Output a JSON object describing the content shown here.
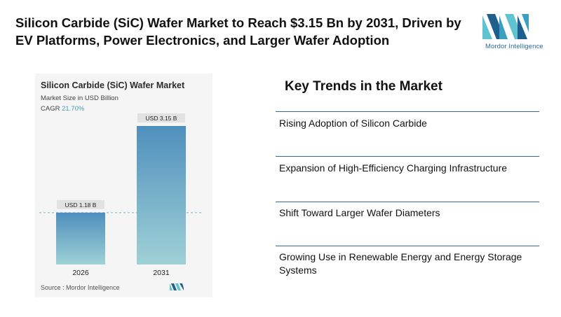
{
  "headline": "Silicon Carbide (SiC) Wafer Market to Reach $3.15 Bn by 2031, Driven by EV Platforms, Power Electronics, and Larger Wafer Adoption",
  "logo": {
    "text": "Mordor Intelligence",
    "icon": "mordor-intelligence-logo"
  },
  "chart": {
    "title": "Silicon Carbide (SiC) Wafer Market",
    "subtitle": "Market Size in USD Billion",
    "cagr_label": "CAGR",
    "cagr_value": "21.70%",
    "source": "Source : Mordor Intelligence"
  },
  "chart_data": {
    "type": "bar",
    "title": "Silicon Carbide (SiC) Wafer Market",
    "ylabel": "Market Size in USD Billion",
    "xlabel": "",
    "categories": [
      "2026",
      "2031"
    ],
    "values": [
      1.18,
      3.15
    ],
    "data_labels": [
      "USD 1.18 B",
      "USD 3.15 B"
    ],
    "ylim": [
      0,
      3.15
    ],
    "reference_line": 1.18,
    "grid": false,
    "legend": "none",
    "bar_color_top": "#4f8fbd",
    "bar_color_bottom": "#9fd1d6"
  },
  "trends": {
    "title": "Key Trends in the Market",
    "items": [
      {
        "label": "Rising Adoption of Silicon Carbide"
      },
      {
        "label": "Expansion of High-Efficiency Charging Infrastructure"
      },
      {
        "label": "Shift Toward Larger Wafer Diameters"
      },
      {
        "label": "Growing Use in Renewable Energy and Energy Storage Systems"
      }
    ]
  },
  "colors": {
    "accent": "#2e6b8c",
    "logo_dark": "#1f5f8b",
    "logo_light": "#5fc4cf"
  }
}
